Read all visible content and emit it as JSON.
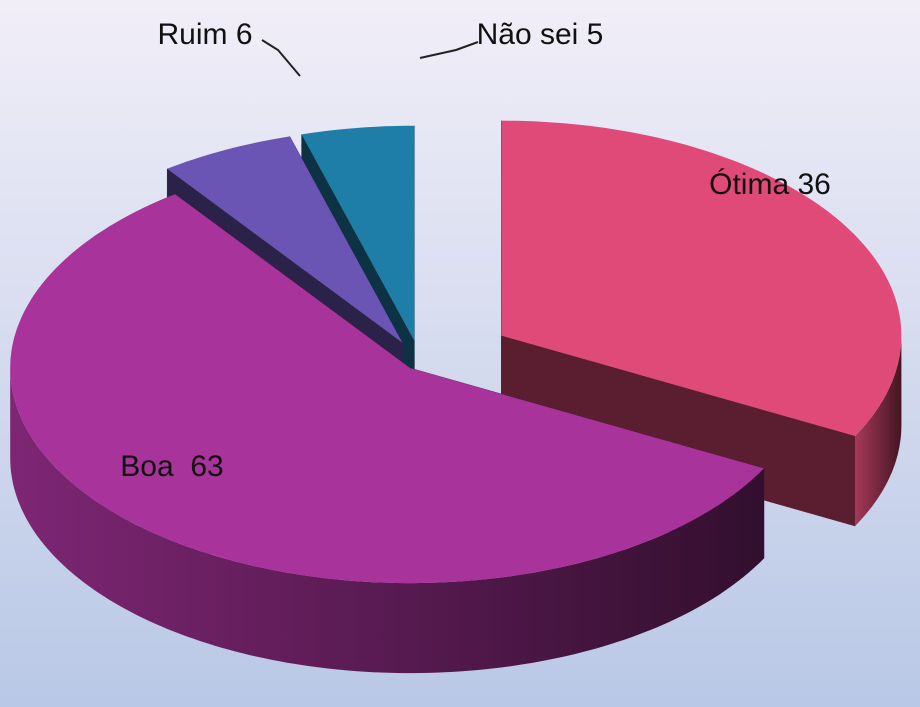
{
  "chart_data": {
    "type": "pie3d",
    "values": [
      36,
      63,
      6,
      5
    ],
    "value_labels": [
      "Ótima 36",
      "Boa  63",
      "Ruim 6",
      "Não sei 5"
    ],
    "colors": [
      "#e04a78",
      "#a8339a",
      "#6a55b5",
      "#1e7ea8"
    ]
  }
}
